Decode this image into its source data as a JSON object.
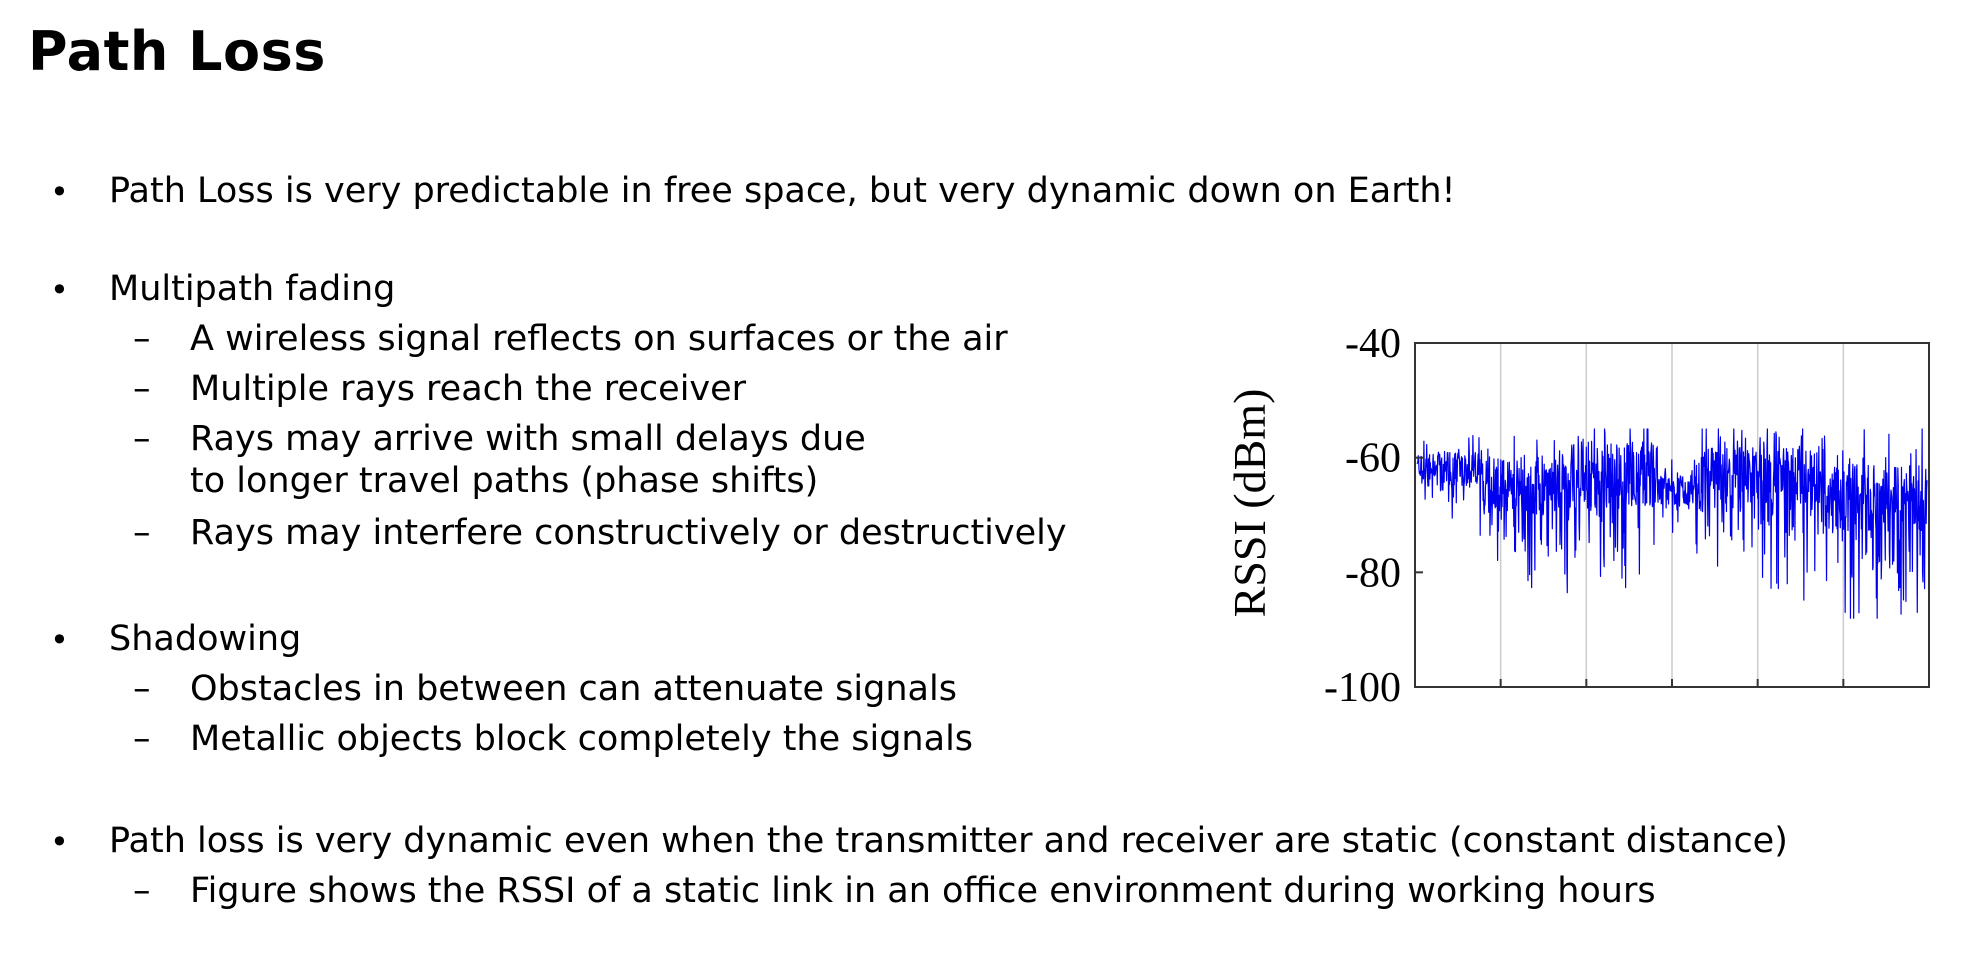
{
  "slide": {
    "title": "Path Loss",
    "bullets": [
      {
        "text": "Path Loss is very predictable in free space, but very dynamic down on Earth!"
      },
      {
        "text": "Multipath fading",
        "subs": [
          "A wireless signal reflects on surfaces or the air",
          "Multiple rays reach the receiver",
          "Rays may arrive with small delays due",
          "to longer travel paths (phase shifts)",
          "Rays may interfere constructively or destructively"
        ]
      },
      {
        "text": "Shadowing",
        "subs": [
          "Obstacles in between can attenuate signals",
          "Metallic objects block completely the signals"
        ]
      },
      {
        "text": "Path loss is very dynamic even when the transmitter and receiver are static (constant distance)",
        "subs": [
          "Figure shows the RSSI of a static link in an office environment during working hours"
        ]
      }
    ],
    "bullet_glyph": "•",
    "dash_glyph": "–"
  },
  "chart_data": {
    "type": "line",
    "ylabel": "RSSI (dBm)",
    "xlabel": "",
    "title": "",
    "ylim": [
      -100,
      -40
    ],
    "yticks": [
      "-40",
      "-60",
      "-80",
      "-100"
    ],
    "ytick_values": [
      -40,
      -60,
      -80,
      -100
    ],
    "x_gridlines": 5,
    "grid": "vertical",
    "line_color": "#0000ee",
    "frame_color": "#333333",
    "grid_color": "#cccccc",
    "series": [
      {
        "segments": [
          {
            "base": -62,
            "noise": 3,
            "dip_rate": 0.06,
            "dip_depth": 12,
            "len": 17
          },
          {
            "base": -65,
            "noise": 5,
            "dip_rate": 0.16,
            "dip_depth": 17,
            "len": 25
          },
          {
            "base": -63,
            "noise": 6,
            "dip_rate": 0.14,
            "dip_depth": 16,
            "len": 24
          },
          {
            "base": -66,
            "noise": 3,
            "dip_rate": 0.05,
            "dip_depth": 9,
            "len": 12
          },
          {
            "base": -63,
            "noise": 5,
            "dip_rate": 0.16,
            "dip_depth": 18,
            "len": 34
          },
          {
            "base": -67,
            "noise": 6,
            "dip_rate": 0.22,
            "dip_depth": 18,
            "len": 28
          }
        ],
        "min": -88,
        "max": -55
      }
    ]
  }
}
